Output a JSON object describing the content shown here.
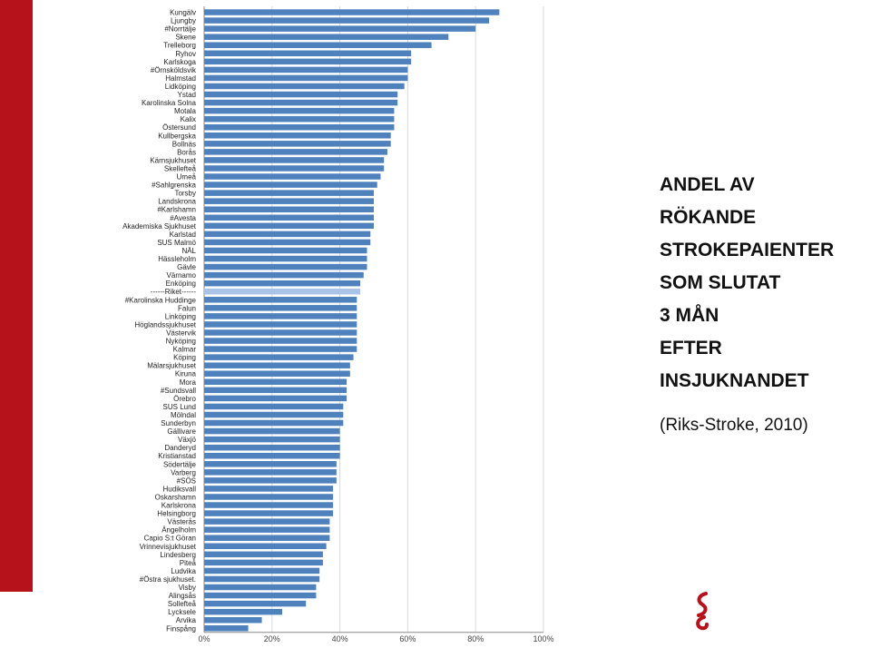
{
  "slide": {
    "title": "ANDEL  AV\nRÖKANDE\nSTROKEPAIENTER\nSOM SLUTAT\n3 MÅN\nEFTER\nINSJUKNANDET",
    "source": "(Riks-Stroke, 2010)",
    "accent_color": "#b5121b",
    "logo_icon": "red-swirl-logo"
  },
  "chart_data": {
    "type": "bar",
    "orientation": "horizontal",
    "title": "",
    "xlabel": "",
    "ylabel": "",
    "xlim": [
      0,
      100
    ],
    "x_ticks": [
      "0%",
      "20%",
      "40%",
      "60%",
      "80%",
      "100%"
    ],
    "grid": true,
    "bar_color": "#4f81bd",
    "highlight_color": "#a9c4e8",
    "highlight_category": "------Riket------",
    "categories": [
      "Kungälv",
      "Ljungby",
      "#Norrtälje",
      "Skene",
      "Trelleborg",
      "Ryhov",
      "Karlskoga",
      "#Örnsköldsvik",
      "Halmstad",
      "Lidköping",
      "Ystad",
      "Karolinska Solna",
      "Motala",
      "Kalix",
      "Östersund",
      "Kullbergska",
      "Bollnäs",
      "Borås",
      "Kärnsjukhuset",
      "Skellefteå",
      "Umeå",
      "#Sahlgrenska",
      "Torsby",
      "Landskrona",
      "#Karlshamn",
      "#Avesta",
      "Akademiska Sjukhuset",
      "Karlstad",
      "SUS Malmö",
      "NÄL",
      "Hässleholm",
      "Gävle",
      "Värnamo",
      "Enköping",
      "------Riket------",
      "#Karolinska Huddinge",
      "Falun",
      "Linköping",
      "Höglandssjukhuset",
      "Västervik",
      "Nyköping",
      "Kalmar",
      "Köping",
      "Mälarsjukhuset",
      "Kiruna",
      "Mora",
      "#Sundsvall",
      "Örebro",
      "SUS Lund",
      "Mölndal",
      "Sunderbyn",
      "Gällivare",
      "Växjö",
      "Danderyd",
      "Kristianstad",
      "Södertälje",
      "Varberg",
      "#SÖS",
      "Hudiksvall",
      "Oskarshamn",
      "Karlskrona",
      "Helsingborg",
      "Västerås",
      "Ängelholm",
      "Capio S:t Göran",
      "Vrinnevisjukhuset",
      "Lindesberg",
      "Piteå",
      "Ludvika",
      "#Östra sjukhuset.",
      "Visby",
      "Alingsås",
      "Sollefteå",
      "Lycksele",
      "Arvika",
      "Finspång"
    ],
    "values": [
      87,
      84,
      80,
      72,
      67,
      61,
      61,
      60,
      60,
      59,
      57,
      57,
      56,
      56,
      56,
      55,
      55,
      54,
      53,
      53,
      52,
      51,
      50,
      50,
      50,
      50,
      50,
      49,
      49,
      48,
      48,
      48,
      47,
      46,
      46,
      45,
      45,
      45,
      45,
      45,
      45,
      45,
      44,
      43,
      43,
      42,
      42,
      42,
      41,
      41,
      41,
      40,
      40,
      40,
      40,
      39,
      39,
      39,
      38,
      38,
      38,
      38,
      37,
      37,
      37,
      36,
      35,
      35,
      34,
      34,
      33,
      33,
      30,
      23,
      17,
      13
    ]
  }
}
